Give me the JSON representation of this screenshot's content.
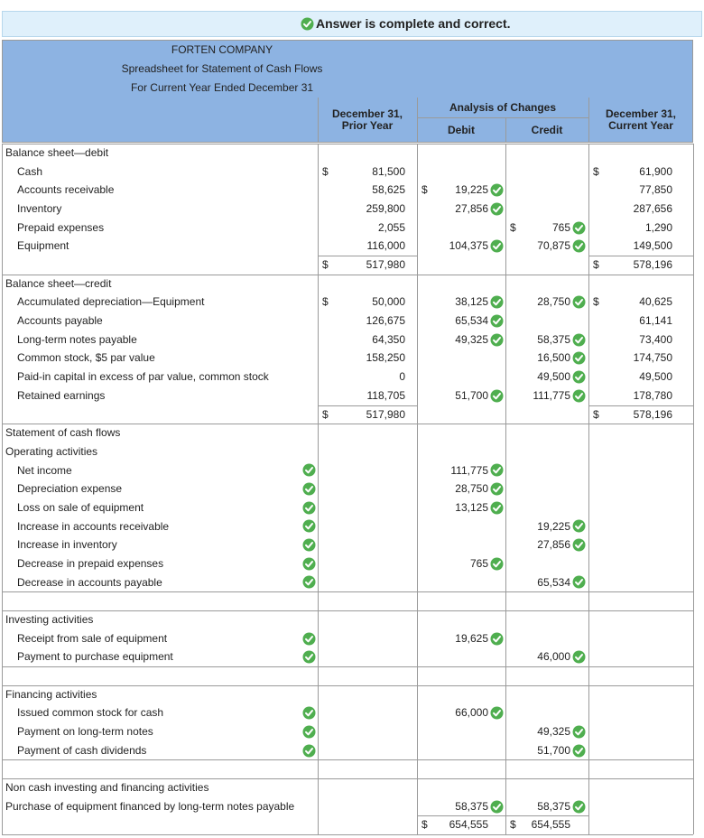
{
  "banner": "Answer is complete and correct.",
  "title": [
    "FORTEN COMPANY",
    "Spreadsheet for Statement of Cash Flows",
    "For Current Year Ended December 31"
  ],
  "columns": {
    "prior": "December 31,\nPrior Year",
    "analysis": "Analysis of Changes",
    "debit": "Debit",
    "credit": "Credit",
    "current": "December 31,\nCurrent Year"
  },
  "rows": [
    {
      "kind": "section",
      "label": "Balance sheet—debit"
    },
    {
      "kind": "item",
      "label": "Cash",
      "prior_sign": "$",
      "prior": "81,500",
      "current_sign": "$",
      "current": "61,900"
    },
    {
      "kind": "item",
      "label": "Accounts receivable",
      "prior": "58,625",
      "debit_sign": "$",
      "debit": "19,225",
      "debit_check": true,
      "current": "77,850"
    },
    {
      "kind": "item",
      "label": "Inventory",
      "prior": "259,800",
      "debit": "27,856",
      "debit_check": true,
      "current": "287,656"
    },
    {
      "kind": "item",
      "label": "Prepaid expenses",
      "prior": "2,055",
      "credit_sign": "$",
      "credit": "765",
      "credit_check": true,
      "current": "1,290"
    },
    {
      "kind": "item",
      "label": "Equipment",
      "prior": "116,000",
      "debit": "104,375",
      "debit_check": true,
      "credit": "70,875",
      "credit_check": true,
      "current": "149,500"
    },
    {
      "kind": "total",
      "prior_sign": "$",
      "prior": "517,980",
      "current_sign": "$",
      "current": "578,196"
    },
    {
      "kind": "section",
      "label": "Balance sheet—credit"
    },
    {
      "kind": "item",
      "label": "Accumulated depreciation—Equipment",
      "prior_sign": "$",
      "prior": "50,000",
      "debit": "38,125",
      "debit_check": true,
      "credit": "28,750",
      "credit_check": true,
      "current_sign": "$",
      "current": "40,625"
    },
    {
      "kind": "item",
      "label": "Accounts payable",
      "prior": "126,675",
      "debit": "65,534",
      "debit_check": true,
      "current": "61,141"
    },
    {
      "kind": "item",
      "label": "Long-term notes payable",
      "prior": "64,350",
      "debit": "49,325",
      "debit_check": true,
      "credit": "58,375",
      "credit_check": true,
      "current": "73,400"
    },
    {
      "kind": "item",
      "label": "Common stock, $5 par value",
      "prior": "158,250",
      "credit": "16,500",
      "credit_check": true,
      "current": "174,750"
    },
    {
      "kind": "item",
      "label": "Paid-in capital in excess of par value, common stock",
      "prior": "0",
      "credit": "49,500",
      "credit_check": true,
      "current": "49,500"
    },
    {
      "kind": "item",
      "label": "Retained earnings",
      "prior": "118,705",
      "debit": "51,700",
      "debit_check": true,
      "credit": "111,775",
      "credit_check": true,
      "current": "178,780"
    },
    {
      "kind": "total",
      "prior_sign": "$",
      "prior": "517,980",
      "current_sign": "$",
      "current": "578,196"
    },
    {
      "kind": "section",
      "label": "Statement of cash flows"
    },
    {
      "kind": "section",
      "label": "Operating activities"
    },
    {
      "kind": "item",
      "label": "Net income",
      "check": true,
      "debit": "111,775",
      "debit_check": true
    },
    {
      "kind": "item",
      "label": "Depreciation expense",
      "check": true,
      "debit": "28,750",
      "debit_check": true
    },
    {
      "kind": "item",
      "label": "Loss on sale of equipment",
      "check": true,
      "debit": "13,125",
      "debit_check": true
    },
    {
      "kind": "item",
      "label": "Increase in accounts receivable",
      "check": true,
      "credit": "19,225",
      "credit_check": true
    },
    {
      "kind": "item",
      "label": "Increase in inventory",
      "check": true,
      "credit": "27,856",
      "credit_check": true
    },
    {
      "kind": "item",
      "label": "Decrease in prepaid expenses",
      "check": true,
      "debit": "765",
      "debit_check": true
    },
    {
      "kind": "item",
      "label": "Decrease in accounts payable",
      "check": true,
      "credit": "65,534",
      "credit_check": true
    },
    {
      "kind": "blank"
    },
    {
      "kind": "section",
      "label": "Investing activities"
    },
    {
      "kind": "item",
      "label": "Receipt from sale of equipment",
      "check": true,
      "debit": "19,625",
      "debit_check": true
    },
    {
      "kind": "item",
      "label": "Payment to purchase equipment",
      "check": true,
      "credit": "46,000",
      "credit_check": true
    },
    {
      "kind": "blank"
    },
    {
      "kind": "section",
      "label": "Financing activities"
    },
    {
      "kind": "item",
      "label": "Issued common stock for cash",
      "check": true,
      "debit": "66,000",
      "debit_check": true
    },
    {
      "kind": "item",
      "label": "Payment on long-term notes",
      "check": true,
      "credit": "49,325",
      "credit_check": true
    },
    {
      "kind": "item",
      "label": "Payment of cash dividends",
      "check": true,
      "credit": "51,700",
      "credit_check": true
    },
    {
      "kind": "blank"
    },
    {
      "kind": "section",
      "label": "Non cash investing and financing activities"
    },
    {
      "kind": "section",
      "label": "Purchase of equipment financed by long-term notes payable",
      "debit": "58,375",
      "debit_check": true,
      "credit": "58,375",
      "credit_check": true
    },
    {
      "kind": "total",
      "debit_sign": "$",
      "debit": "654,555",
      "credit_sign": "$",
      "credit": "654,555"
    }
  ]
}
